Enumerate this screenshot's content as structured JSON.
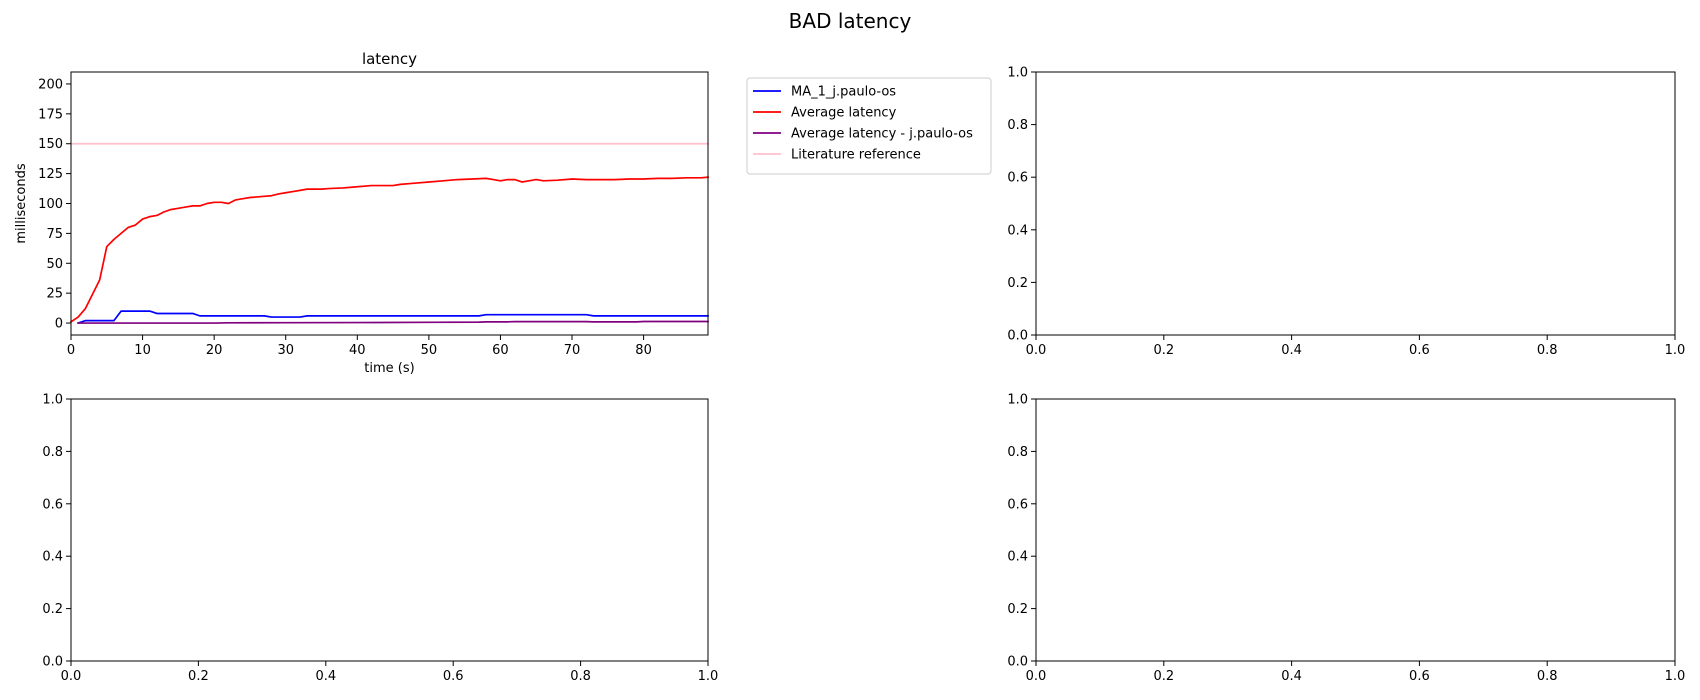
{
  "figure": {
    "suptitle": "BAD latency"
  },
  "chart_data": [
    {
      "type": "line",
      "title": "latency",
      "xlabel": "time (s)",
      "ylabel": "milliseconds",
      "xlim": [
        0,
        89
      ],
      "ylim": [
        -10,
        210
      ],
      "xticks": [
        0,
        10,
        20,
        30,
        40,
        50,
        60,
        70,
        80
      ],
      "yticks": [
        0,
        25,
        50,
        75,
        100,
        125,
        150,
        175,
        200
      ],
      "grid": false,
      "legend_placement": "outside-right",
      "series": [
        {
          "name": "MA_1_j.paulo-os",
          "color": "#0000ff",
          "x": [
            1,
            2,
            5,
            6,
            7,
            11,
            12,
            16,
            17,
            18,
            27,
            28,
            32,
            33,
            57,
            58,
            71,
            72,
            73,
            89
          ],
          "y": [
            0,
            2,
            2,
            2,
            10,
            10,
            8,
            8,
            8,
            6,
            6,
            5,
            5,
            6,
            6,
            7,
            7,
            7,
            6,
            6
          ]
        },
        {
          "name": "Average latency",
          "color": "#ff0000",
          "x": [
            0,
            1,
            2,
            3,
            4,
            5,
            6,
            7,
            8,
            9,
            10,
            11,
            12,
            13,
            14,
            15,
            16,
            17,
            18,
            19,
            20,
            21,
            22,
            23,
            24,
            25,
            26,
            27,
            28,
            29,
            30,
            31,
            32,
            33,
            34,
            35,
            36,
            38,
            40,
            42,
            44,
            45,
            46,
            48,
            50,
            52,
            54,
            56,
            58,
            59,
            60,
            61,
            62,
            63,
            64,
            65,
            66,
            68,
            70,
            72,
            74,
            76,
            78,
            80,
            82,
            84,
            86,
            88,
            89
          ],
          "y": [
            1,
            5,
            12,
            24,
            36,
            64,
            70,
            75,
            80,
            82,
            87,
            89,
            90,
            93,
            95,
            96,
            97,
            98,
            98,
            100,
            101,
            101,
            100,
            103,
            104,
            105,
            105.5,
            106,
            106.5,
            108,
            109,
            110,
            111,
            112,
            112,
            112,
            112.5,
            113,
            114,
            115,
            115,
            115,
            116,
            117,
            118,
            119,
            120,
            120.5,
            121,
            120,
            119,
            120,
            120,
            118,
            119,
            120,
            119,
            119.5,
            120.5,
            120,
            120,
            120,
            120.5,
            120.5,
            121,
            121,
            121.5,
            121.5,
            122
          ]
        },
        {
          "name": "Average latency - j.paulo-os",
          "color": "#800080",
          "x": [
            1,
            2,
            5,
            10,
            15,
            20,
            22,
            30,
            40,
            50,
            57,
            58,
            61,
            62,
            72,
            73,
            79,
            80,
            89
          ],
          "y": [
            0,
            0,
            0,
            0,
            0,
            0,
            0.2,
            0.3,
            0.4,
            0.6,
            0.8,
            1,
            1,
            1.2,
            1.2,
            1,
            1,
            1.3,
            1.3
          ]
        },
        {
          "name": "Literature reference",
          "color": "#ffc0cb",
          "x": [
            0,
            89
          ],
          "y": [
            150,
            150
          ]
        }
      ]
    },
    {
      "type": "line",
      "title": "",
      "xlim": [
        0,
        1
      ],
      "ylim": [
        0,
        1
      ],
      "xticks": [
        0.0,
        0.2,
        0.4,
        0.6,
        0.8,
        1.0
      ],
      "yticks": [
        0.0,
        0.2,
        0.4,
        0.6,
        0.8,
        1.0
      ],
      "series": []
    },
    {
      "type": "line",
      "title": "",
      "xlim": [
        0,
        1
      ],
      "ylim": [
        0,
        1
      ],
      "xticks": [
        0.0,
        0.2,
        0.4,
        0.6,
        0.8,
        1.0
      ],
      "yticks": [
        0.0,
        0.2,
        0.4,
        0.6,
        0.8,
        1.0
      ],
      "series": []
    },
    {
      "type": "line",
      "title": "",
      "xlim": [
        0,
        1
      ],
      "ylim": [
        0,
        1
      ],
      "xticks": [
        0.0,
        0.2,
        0.4,
        0.6,
        0.8,
        1.0
      ],
      "yticks": [
        0.0,
        0.2,
        0.4,
        0.6,
        0.8,
        1.0
      ],
      "series": []
    }
  ]
}
